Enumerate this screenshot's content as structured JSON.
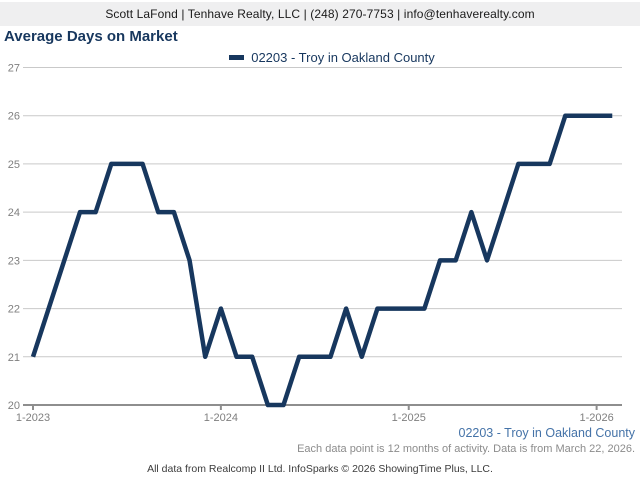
{
  "header": {
    "contact_line": "Scott LaFond | Tenhave Realty, LLC | (248) 270-7753 | info@tenhaverealty.com"
  },
  "title": "Average Days on Market",
  "legend": {
    "label": "02203 - Troy in Oakland County"
  },
  "footer": {
    "series_label": "02203 - Troy in Oakland County",
    "note": "Each data point is 12 months of activity. Data is from March 22, 2026.",
    "attribution": "All data from Realcomp II Ltd. InfoSparks © 2026 ShowingTime Plus, LLC."
  },
  "colors": {
    "line": "#17375e",
    "title": "#17375e",
    "footer_link": "#4573a8",
    "grid": "#c9c9c9",
    "axis_line": "#8e8e8e",
    "axis_text": "#7f7f7f",
    "header_bg": "#efeff0"
  },
  "chart_data": {
    "type": "line",
    "title": "Average Days on Market",
    "x": [
      "1-2023",
      "2-2023",
      "3-2023",
      "4-2023",
      "5-2023",
      "6-2023",
      "7-2023",
      "8-2023",
      "9-2023",
      "10-2023",
      "11-2023",
      "12-2023",
      "1-2024",
      "2-2024",
      "3-2024",
      "4-2024",
      "5-2024",
      "6-2024",
      "7-2024",
      "8-2024",
      "9-2024",
      "10-2024",
      "11-2024",
      "12-2024",
      "1-2025",
      "2-2025",
      "3-2025",
      "4-2025",
      "5-2025",
      "6-2025",
      "7-2025",
      "8-2025",
      "9-2025",
      "10-2025",
      "11-2025",
      "12-2025",
      "1-2026",
      "2-2026"
    ],
    "series": [
      {
        "name": "02203 - Troy in Oakland County",
        "values": [
          21,
          22,
          23,
          24,
          24,
          25,
          25,
          25,
          24,
          24,
          23,
          21,
          22,
          21,
          21,
          20,
          20,
          21,
          21,
          21,
          22,
          21,
          22,
          22,
          22,
          22,
          23,
          23,
          24,
          23,
          24,
          25,
          25,
          25,
          26,
          26,
          26,
          26
        ]
      }
    ],
    "xlabel": "",
    "ylabel": "",
    "ylim": [
      20,
      27
    ],
    "y_ticks": [
      20,
      21,
      22,
      23,
      24,
      25,
      26,
      27
    ],
    "x_tick_labels": [
      "1-2023",
      "1-2024",
      "1-2025",
      "1-2026"
    ],
    "grid": true,
    "legend_position": "top"
  }
}
